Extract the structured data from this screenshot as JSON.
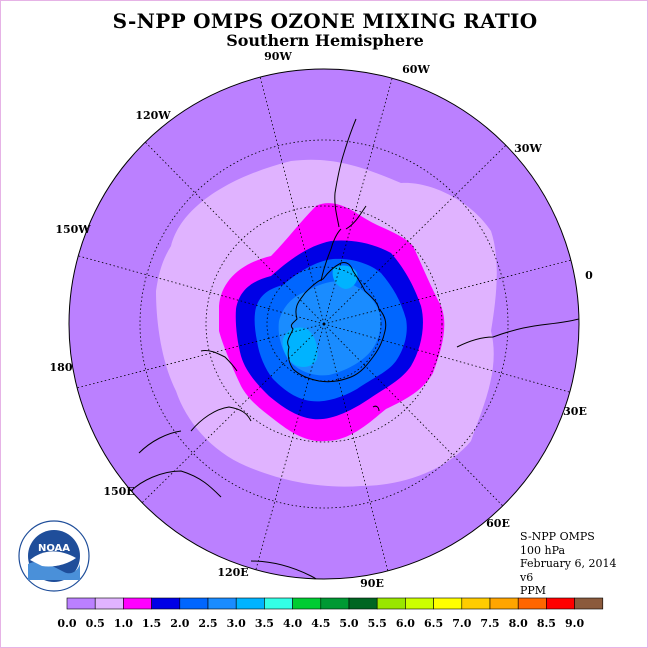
{
  "title": "S-NPP OMPS OZONE MIXING RATIO",
  "subtitle": "Southern Hemisphere",
  "longitude_labels": [
    "0",
    "30E",
    "60E",
    "90E",
    "120E",
    "150E",
    "180",
    "150W",
    "120W",
    "90W",
    "60W",
    "30W"
  ],
  "info": {
    "instrument": "S-NPP OMPS",
    "level": "100 hPa",
    "date": "February 6, 2014",
    "version": "v6",
    "units": "PPM"
  },
  "logo": {
    "text": "NOAA",
    "icon": "noaa-logo-icon"
  },
  "color_scale": {
    "ticks": [
      "0.0",
      "0.5",
      "1.0",
      "1.5",
      "2.0",
      "2.5",
      "3.0",
      "3.5",
      "4.0",
      "4.5",
      "5.0",
      "5.5",
      "6.0",
      "6.5",
      "7.0",
      "7.5",
      "8.0",
      "8.5",
      "9.0"
    ],
    "colors": [
      "#bb80ff",
      "#e0b3ff",
      "#ff00ff",
      "#0000e6",
      "#0066ff",
      "#1a8cff",
      "#00b3ff",
      "#33ffe6",
      "#00cc33",
      "#009933",
      "#006622",
      "#99e600",
      "#ccff00",
      "#ffff00",
      "#ffcc00",
      "#ffa500",
      "#ff6600",
      "#ff0000",
      "#8b5a3c"
    ]
  },
  "chart_data": {
    "type": "heatmap",
    "projection": "south-polar-stereographic",
    "variable": "ozone mixing ratio",
    "units": "PPM",
    "level": "100 hPa",
    "range": [
      0.0,
      9.0
    ],
    "contour_zones": [
      {
        "range": [
          0.0,
          0.5
        ],
        "color": "#bb80ff",
        "region": "outer mid-latitudes"
      },
      {
        "range": [
          0.5,
          1.0
        ],
        "color": "#e0b3ff",
        "region": "ring around polar vortex"
      },
      {
        "range": [
          1.0,
          1.5
        ],
        "color": "#ff00ff",
        "region": "vortex edge"
      },
      {
        "range": [
          1.5,
          2.0
        ],
        "color": "#0000e6",
        "region": "inner vortex edge"
      },
      {
        "range": [
          2.0,
          2.5
        ],
        "color": "#0066ff",
        "region": "over Antarctica"
      },
      {
        "range": [
          2.5,
          3.0
        ],
        "color": "#1a8cff",
        "region": "polar cap"
      },
      {
        "range": [
          3.0,
          3.5
        ],
        "color": "#00b3ff",
        "region": "isolated pockets over Antarctica"
      }
    ]
  }
}
